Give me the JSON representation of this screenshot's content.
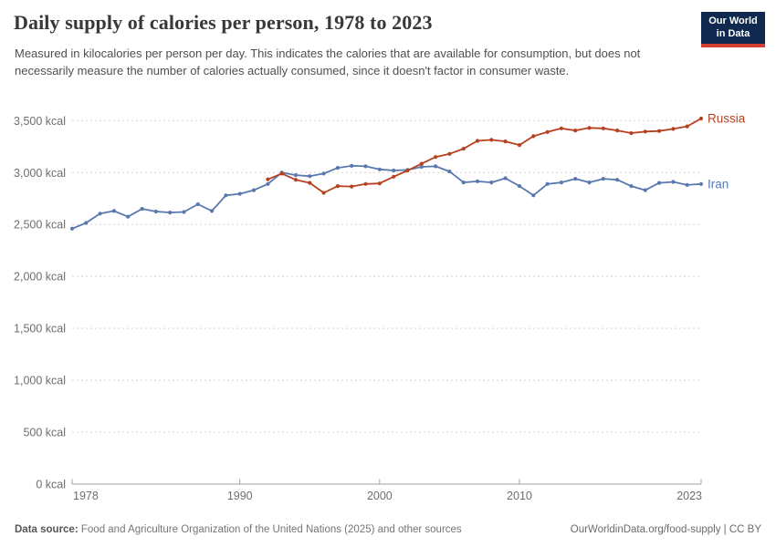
{
  "header": {
    "title": "Daily supply of calories per person, 1978 to 2023",
    "subtitle": "Measured in kilocalories per person per day. This indicates the calories that are available for consumption, but does not necessarily measure the number of calories actually consumed, since it doesn't factor in consumer waste.",
    "logo": {
      "line1": "Our World",
      "line2": "in Data"
    }
  },
  "chart_data": {
    "type": "line",
    "title": "Daily supply of calories per person, 1978 to 2023",
    "unit": "kcal",
    "xlim": [
      1978,
      2023
    ],
    "ylim": [
      0,
      3500
    ],
    "grid": "horizontal-dashed",
    "legend_position": "line-end-labels",
    "xticks": {
      "values": [
        1978,
        1990,
        2000,
        2010,
        2023
      ],
      "labels": [
        "1978",
        "1990",
        "2000",
        "2010",
        "2023"
      ]
    },
    "yticks": {
      "values": [
        0,
        500,
        1000,
        1500,
        2000,
        2500,
        3000,
        3500
      ],
      "labels": [
        "0 kcal",
        "500 kcal",
        "1,000 kcal",
        "1,500 kcal",
        "2,000 kcal",
        "2,500 kcal",
        "3,000 kcal",
        "3,500 kcal"
      ]
    },
    "series": [
      {
        "name": "Iran",
        "color": "#5878ae",
        "start_year": 1978,
        "values": [
          2460,
          2515,
          2605,
          2630,
          2575,
          2650,
          2625,
          2615,
          2620,
          2695,
          2630,
          2780,
          2795,
          2830,
          2890,
          3000,
          2975,
          2965,
          2990,
          3045,
          3065,
          3060,
          3030,
          3020,
          3025,
          3055,
          3060,
          3010,
          2905,
          2915,
          2905,
          2945,
          2870,
          2780,
          2890,
          2905,
          2940,
          2905,
          2940,
          2930,
          2870,
          2830,
          2900,
          2910,
          2880,
          2890
        ]
      },
      {
        "name": "Russia",
        "color": "#b6411f",
        "start_year": 1992,
        "values": [
          2935,
          2990,
          2930,
          2900,
          2805,
          2870,
          2865,
          2890,
          2895,
          2960,
          3020,
          3085,
          3150,
          3180,
          3230,
          3305,
          3315,
          3300,
          3265,
          3350,
          3390,
          3425,
          3405,
          3430,
          3425,
          3405,
          3380,
          3395,
          3400,
          3420,
          3445,
          3520
        ]
      }
    ]
  },
  "footer": {
    "source_label": "Data source:",
    "source_text": "Food and Agriculture Organization of the United Nations (2025) and other sources",
    "link_text": "OurWorldinData.org/food-supply | CC BY"
  }
}
